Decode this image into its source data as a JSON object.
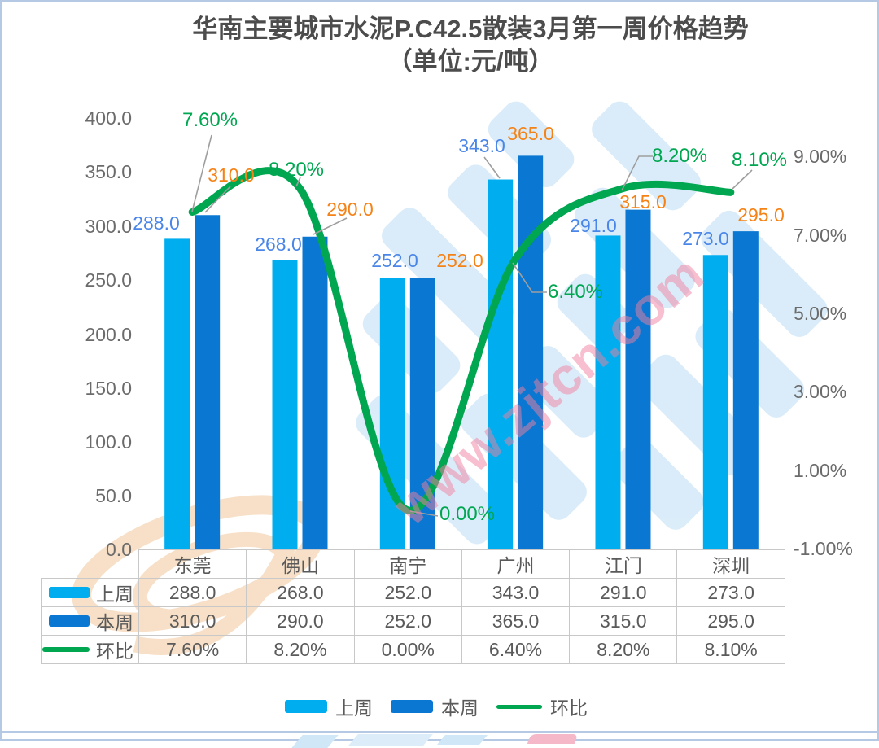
{
  "title": {
    "line1": "华南主要城市水泥P.C42.5散装3月第一周价格趋势",
    "line2": "（单位:元/吨）"
  },
  "chart_data": {
    "type": "bar",
    "subtype": "grouped-bars-with-line",
    "categories": [
      "东莞",
      "佛山",
      "南宁",
      "广州",
      "江门",
      "深圳"
    ],
    "series": [
      {
        "name": "上周",
        "type": "bar",
        "axis": "left",
        "color": "#00aeef",
        "label_color": "#4a86e8",
        "values": [
          288.0,
          268.0,
          252.0,
          343.0,
          291.0,
          273.0
        ],
        "labels": [
          "288.0",
          "268.0",
          "252.0",
          "343.0",
          "291.0",
          "273.0"
        ]
      },
      {
        "name": "本周",
        "type": "bar",
        "axis": "left",
        "color": "#0a78d2",
        "label_color": "#f58216",
        "values": [
          310.0,
          290.0,
          252.0,
          365.0,
          315.0,
          295.0
        ],
        "labels": [
          "310.0",
          "290.0",
          "252.0",
          "365.0",
          "315.0",
          "295.0"
        ]
      },
      {
        "name": "环比",
        "type": "line",
        "axis": "right",
        "color": "#00a650",
        "label_color": "#00a650",
        "values": [
          7.6,
          8.2,
          0.0,
          6.4,
          8.2,
          8.1
        ],
        "labels": [
          "7.60%",
          "8.20%",
          "0.00%",
          "6.40%",
          "8.20%",
          "8.10%"
        ]
      }
    ],
    "left_axis": {
      "ticks": [
        "400.0",
        "350.0",
        "300.0",
        "250.0",
        "200.0",
        "150.0",
        "100.0",
        "50.0",
        "0.0"
      ],
      "min": 0,
      "max": 400
    },
    "right_axis": {
      "ticks": [
        "9.00%",
        "7.00%",
        "5.00%",
        "3.00%",
        "1.00%",
        "-1.00%"
      ],
      "min": -1,
      "max": 9
    },
    "grid": false,
    "legend_position": "bottom"
  },
  "watermark": {
    "text": "www.zjtcn.com",
    "pink": "#f080a0",
    "blue": "#d9ecf9",
    "tan": "#f7ddc1"
  },
  "colors": {
    "frame_border": "#b6c9e4",
    "axis_text": "#6b6b6b",
    "table_text": "#5a5a5a",
    "table_border": "#c8c8c8",
    "leader": "#9e9e9e",
    "title_text": "#4c4c4c"
  }
}
